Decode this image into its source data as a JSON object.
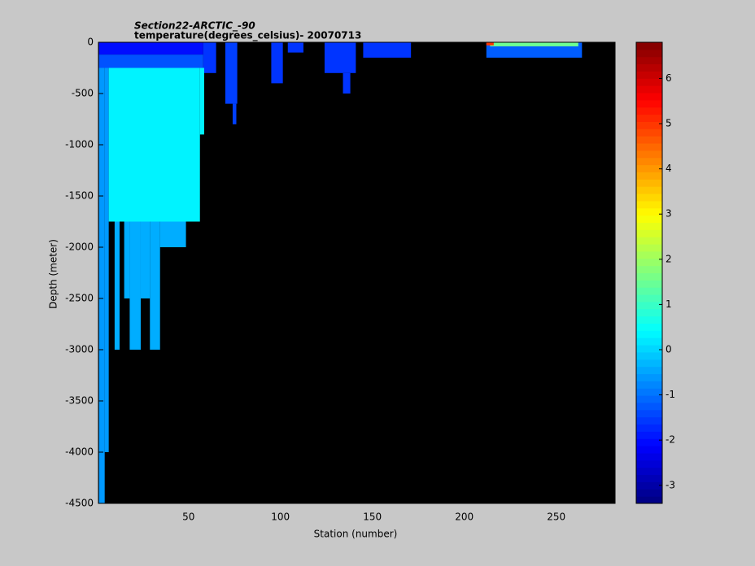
{
  "chart_data": {
    "type": "heatmap",
    "title": "Section22-ARCTIC_-90",
    "subtitle": "temperature(degrees_celsius)- 20070713",
    "xlabel": "Station (number)",
    "ylabel": "Depth (meter)",
    "xlim": [
      1,
      282
    ],
    "xticks": [
      50,
      100,
      150,
      200,
      250
    ],
    "ylim": [
      -4500,
      0
    ],
    "yticks": [
      0,
      -500,
      -1000,
      -1500,
      -2000,
      -2500,
      -3000,
      -3500,
      -4000,
      -4500
    ],
    "clim": [
      -3.4,
      6.8
    ],
    "cticks": [
      -3,
      -2,
      -1,
      0,
      1,
      2,
      3,
      4,
      5,
      6
    ],
    "colormap": "jet",
    "background": "#000000",
    "cells": [
      {
        "x": [
          1.3,
          58
        ],
        "y": [
          0,
          -120
        ],
        "value": -2
      },
      {
        "x": [
          1.3,
          58
        ],
        "y": [
          -120,
          -250
        ],
        "value": -1.3
      },
      {
        "x": [
          58,
          65
        ],
        "y": [
          0,
          -300
        ],
        "value": -1.6
      },
      {
        "x": [
          1.3,
          4.4
        ],
        "y": [
          -250,
          -4500
        ],
        "value": -0.6
      },
      {
        "x": [
          4.4,
          6.6
        ],
        "y": [
          -250,
          -4000
        ],
        "value": -0.6
      },
      {
        "x": [
          6.6,
          56.2
        ],
        "y": [
          -250,
          -1750
        ],
        "value": 0.3
      },
      {
        "x": [
          56.2,
          58.5
        ],
        "y": [
          -250,
          -900
        ],
        "value": 0.3
      },
      {
        "x": [
          9.8,
          12.5
        ],
        "y": [
          -1750,
          -3000
        ],
        "value": -0.4
      },
      {
        "x": [
          15,
          18
        ],
        "y": [
          -1750,
          -2500
        ],
        "value": -0.4
      },
      {
        "x": [
          18,
          24
        ],
        "y": [
          -1750,
          -3000
        ],
        "value": -0.4
      },
      {
        "x": [
          24,
          29
        ],
        "y": [
          -1750,
          -2500
        ],
        "value": -0.4
      },
      {
        "x": [
          29,
          34.5
        ],
        "y": [
          -1750,
          -3000
        ],
        "value": -0.4
      },
      {
        "x": [
          34.5,
          48.6
        ],
        "y": [
          -1750,
          -2000
        ],
        "value": -0.4
      },
      {
        "x": [
          70,
          76.5
        ],
        "y": [
          0,
          -600
        ],
        "value": -1.5
      },
      {
        "x": [
          74,
          76
        ],
        "y": [
          -600,
          -800
        ],
        "value": -1.5
      },
      {
        "x": [
          95,
          101.3
        ],
        "y": [
          0,
          -400
        ],
        "value": -1.6
      },
      {
        "x": [
          104,
          112.5
        ],
        "y": [
          0,
          -100
        ],
        "value": -1.6
      },
      {
        "x": [
          124,
          141
        ],
        "y": [
          0,
          -300
        ],
        "value": -1.6
      },
      {
        "x": [
          134,
          138
        ],
        "y": [
          -300,
          -500
        ],
        "value": -1.6
      },
      {
        "x": [
          145,
          171
        ],
        "y": [
          0,
          -150
        ],
        "value": -1.6
      },
      {
        "x": [
          212,
          264
        ],
        "y": [
          0,
          -150
        ],
        "value": -1.2
      },
      {
        "x": [
          214,
          262
        ],
        "y": [
          0,
          -40
        ],
        "value": 1.5
      },
      {
        "x": [
          212,
          216
        ],
        "y": [
          0,
          -30
        ],
        "value": 5
      }
    ]
  }
}
